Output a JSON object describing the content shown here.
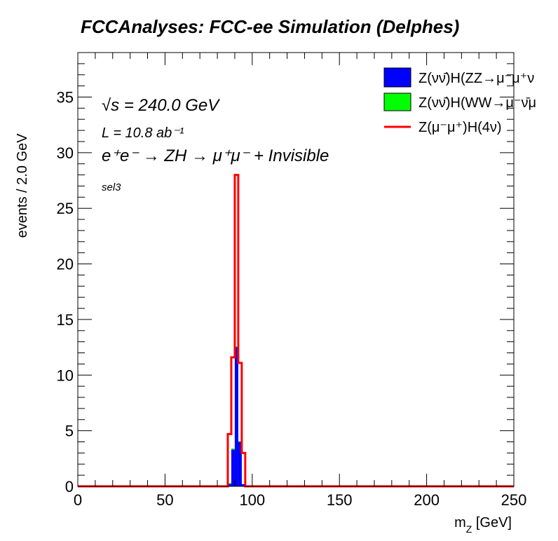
{
  "chart_data": {
    "type": "bar",
    "title": "FCCAnalyses: FCC-ee Simulation (Delphes)",
    "xlabel": "m_Z [GeV]",
    "ylabel": "events / 2.0 GeV",
    "xlim": [
      0,
      250
    ],
    "ylim": [
      0,
      39
    ],
    "bin_width": 2.0,
    "x_ticks": [
      "0",
      "50",
      "100",
      "150",
      "200",
      "250"
    ],
    "y_ticks": [
      "0",
      "5",
      "10",
      "15",
      "20",
      "25",
      "30",
      "35"
    ],
    "x_tick_values": [
      0,
      50,
      100,
      150,
      200,
      250
    ],
    "y_tick_values": [
      0,
      5,
      10,
      15,
      20,
      25,
      30,
      35
    ],
    "annotations": {
      "sqrt_s": "√s = 240.0 GeV",
      "lumi": "L = 10.8 ab⁻¹",
      "process": "e⁺e⁻ → ZH → μ⁺μ⁻ + Invisible",
      "selection": "sel3"
    },
    "series": [
      {
        "name": "Z(νν̄)H(ZZ→μ⁻μ⁺ν",
        "style": "stacked-fill",
        "color": "#0000ff",
        "bins": [
          [
            86,
            0.2
          ],
          [
            88,
            3.3
          ],
          [
            90,
            12.5
          ],
          [
            92,
            4.0
          ],
          [
            94,
            0.2
          ]
        ]
      },
      {
        "name": "Z(νν̄)H(WW→μ⁻ν̄μ",
        "style": "stacked-fill",
        "color": "#00ff00",
        "bins": [
          [
            86,
            0.1
          ],
          [
            88,
            0.1
          ],
          [
            90,
            0.1
          ],
          [
            92,
            0.05
          ]
        ]
      },
      {
        "name": "Z(μ⁻μ⁺)H(4ν)",
        "style": "line",
        "color": "#ff0000",
        "bins": [
          [
            86,
            4.7
          ],
          [
            88,
            11.6
          ],
          [
            90,
            28.0
          ],
          [
            92,
            11.1
          ],
          [
            94,
            3.0
          ]
        ]
      }
    ]
  }
}
